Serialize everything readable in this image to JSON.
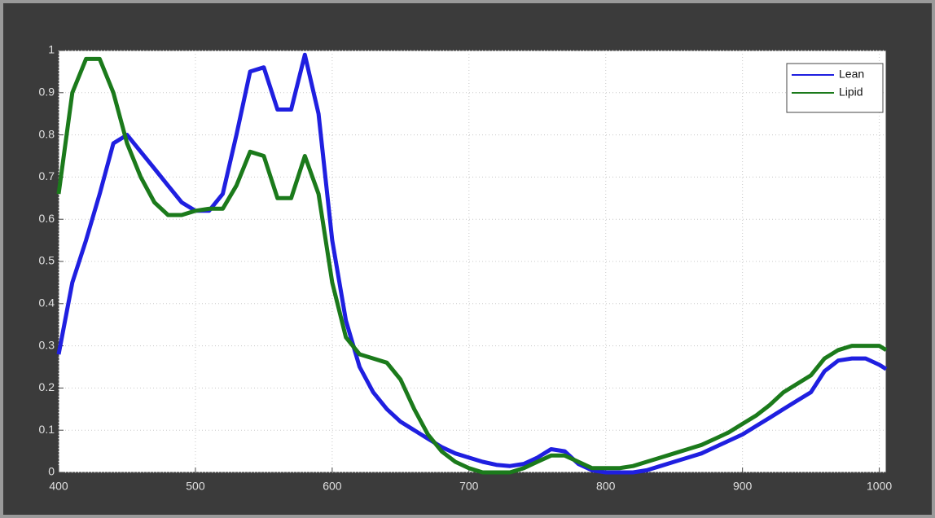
{
  "chart_data": {
    "type": "line",
    "x": [
      400,
      410,
      420,
      430,
      440,
      450,
      460,
      470,
      480,
      490,
      500,
      510,
      520,
      530,
      540,
      550,
      560,
      570,
      580,
      590,
      600,
      610,
      620,
      630,
      640,
      650,
      660,
      670,
      680,
      690,
      700,
      710,
      720,
      730,
      740,
      750,
      760,
      770,
      780,
      790,
      800,
      810,
      820,
      830,
      840,
      850,
      860,
      870,
      880,
      890,
      900,
      910,
      920,
      930,
      940,
      950,
      960,
      970,
      980,
      990,
      1000,
      1005
    ],
    "series": [
      {
        "name": "Lean",
        "color": "#1f1fe0",
        "values": [
          0.28,
          0.45,
          0.55,
          0.66,
          0.78,
          0.8,
          0.76,
          0.72,
          0.68,
          0.64,
          0.62,
          0.62,
          0.66,
          0.8,
          0.95,
          0.96,
          0.86,
          0.86,
          0.99,
          0.85,
          0.55,
          0.36,
          0.25,
          0.19,
          0.15,
          0.12,
          0.1,
          0.08,
          0.06,
          0.045,
          0.035,
          0.025,
          0.018,
          0.015,
          0.02,
          0.035,
          0.055,
          0.05,
          0.02,
          0.005,
          0.0,
          0.0,
          0.0,
          0.005,
          0.015,
          0.025,
          0.035,
          0.045,
          0.06,
          0.075,
          0.09,
          0.11,
          0.13,
          0.15,
          0.17,
          0.19,
          0.24,
          0.265,
          0.27,
          0.27,
          0.255,
          0.245
        ]
      },
      {
        "name": "Lipid",
        "color": "#1b7a1b",
        "values": [
          0.66,
          0.9,
          0.98,
          0.98,
          0.9,
          0.78,
          0.7,
          0.64,
          0.61,
          0.61,
          0.62,
          0.625,
          0.625,
          0.68,
          0.76,
          0.75,
          0.65,
          0.65,
          0.75,
          0.66,
          0.45,
          0.32,
          0.28,
          0.27,
          0.26,
          0.22,
          0.15,
          0.09,
          0.05,
          0.025,
          0.01,
          0.0,
          0.0,
          0.0,
          0.01,
          0.025,
          0.04,
          0.04,
          0.025,
          0.01,
          0.01,
          0.01,
          0.015,
          0.025,
          0.035,
          0.045,
          0.055,
          0.065,
          0.08,
          0.095,
          0.115,
          0.135,
          0.16,
          0.19,
          0.21,
          0.23,
          0.27,
          0.29,
          0.3,
          0.3,
          0.3,
          0.29
        ]
      }
    ],
    "xlim": [
      400,
      1005
    ],
    "xticks": [
      400,
      500,
      600,
      700,
      800,
      900,
      1000
    ],
    "ylim": [
      0,
      1
    ],
    "yticks": [
      0,
      0.1,
      0.2,
      0.3,
      0.4,
      0.5,
      0.6,
      0.7,
      0.8,
      0.9,
      1
    ],
    "grid": true,
    "legend": "top-right"
  }
}
